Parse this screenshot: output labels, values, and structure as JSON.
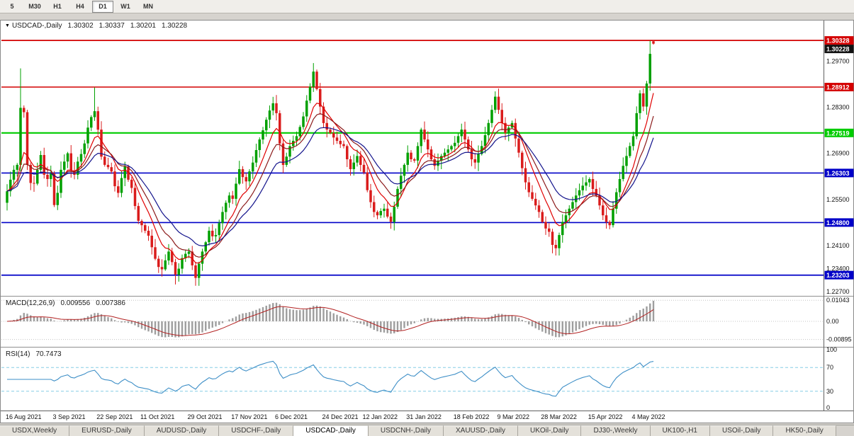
{
  "toolbar": {
    "periods": [
      {
        "label": "5",
        "active": false
      },
      {
        "label": "M30",
        "active": false
      },
      {
        "label": "H1",
        "active": false
      },
      {
        "label": "H4",
        "active": false
      },
      {
        "label": "D1",
        "active": true
      },
      {
        "label": "W1",
        "active": false
      },
      {
        "label": "MN",
        "active": false
      }
    ]
  },
  "price_pane": {
    "title": "USDCAD-,Daily",
    "open": "1.30302",
    "high": "1.30337",
    "low": "1.30201",
    "close": "1.30228"
  },
  "macd_pane": {
    "label": "MACD(12,26,9)",
    "main_value": "0.009556",
    "signal_value": "0.007386"
  },
  "rsi_pane": {
    "label": "RSI(14)",
    "value": "70.7473"
  },
  "tabs": [
    {
      "label": "USDX,Weekly",
      "active": false
    },
    {
      "label": "EURUSD-,Daily",
      "active": false
    },
    {
      "label": "AUDUSD-,Daily",
      "active": false
    },
    {
      "label": "USDCHF-,Daily",
      "active": false
    },
    {
      "label": "USDCAD-,Daily",
      "active": true
    },
    {
      "label": "USDCNH-,Daily",
      "active": false
    },
    {
      "label": "XAUUSD-,Daily",
      "active": false
    },
    {
      "label": "UKOil-,Daily",
      "active": false
    },
    {
      "label": "DJ30-,Weekly",
      "active": false
    },
    {
      "label": "UK100-,H1",
      "active": false
    },
    {
      "label": "USOil-,Daily",
      "active": false
    },
    {
      "label": "HK50-,Daily",
      "active": false
    }
  ],
  "colors": {
    "bull": "#00A000",
    "bear": "#DA1C1C",
    "level_red": "#D40000",
    "level_green": "#00CC00",
    "level_blue": "#0000C8",
    "macd_hist": "#9E9E9E",
    "macd_signal": "#B22222",
    "rsi_line": "#3E8FC7",
    "bid_badge": "#111111"
  },
  "chart_data": {
    "type": "candlestick",
    "symbol": "USDCAD-",
    "timeframe": "Daily",
    "quote": {
      "open": 1.30302,
      "high": 1.30337,
      "low": 1.30201,
      "close": 1.30228
    },
    "closes": [
      1.2575,
      1.261,
      1.264,
      1.2655,
      1.2828,
      1.2815,
      1.2655,
      1.26,
      1.2598,
      1.264,
      1.2685,
      1.2625,
      1.2612,
      1.2628,
      1.2533,
      1.257,
      1.264,
      1.2665,
      1.269,
      1.2638,
      1.2625,
      1.2665,
      1.2688,
      1.272,
      1.2768,
      1.28,
      1.2818,
      1.2762,
      1.268,
      1.2655,
      1.2648,
      1.2635,
      1.259,
      1.257,
      1.2615,
      1.265,
      1.261,
      1.2585,
      1.253,
      1.2485,
      1.2472,
      1.2455,
      1.244,
      1.2405,
      1.237,
      1.2345,
      1.2338,
      1.2365,
      1.2392,
      1.236,
      1.2322,
      1.234,
      1.2372,
      1.2385,
      1.2392,
      1.235,
      1.2312,
      1.2355,
      1.2392,
      1.242,
      1.2455,
      1.2438,
      1.2442,
      1.2478,
      1.2512,
      1.254,
      1.2562,
      1.2552,
      1.2598,
      1.2642,
      1.2618,
      1.2605,
      1.2635,
      1.2662,
      1.27,
      1.2732,
      1.276,
      1.2792,
      1.282,
      1.2842,
      1.2812,
      1.272,
      1.2655,
      1.268,
      1.2712,
      1.2728,
      1.2742,
      1.277,
      1.2802,
      1.285,
      1.2892,
      1.2938,
      1.2885,
      1.2832,
      1.2782,
      1.2762,
      1.2752,
      1.2738,
      1.2728,
      1.2718,
      1.2712,
      1.2672,
      1.2642,
      1.2662,
      1.2682,
      1.2655,
      1.2632,
      1.2578,
      1.2542,
      1.2512,
      1.2502,
      1.2515,
      1.2522,
      1.2498,
      1.2482,
      1.2528,
      1.2582,
      1.2622,
      1.2655,
      1.2692,
      1.2672,
      1.2668,
      1.2712,
      1.2762,
      1.2732,
      1.2702,
      1.2672,
      1.2652,
      1.2668,
      1.2682,
      1.2692,
      1.2702,
      1.2712,
      1.2722,
      1.2742,
      1.2762,
      1.2732,
      1.2702,
      1.2672,
      1.2662,
      1.2688,
      1.2712,
      1.2745,
      1.2782,
      1.2822,
      1.2862,
      1.2822,
      1.2782,
      1.2752,
      1.2768,
      1.2782,
      1.2735,
      1.2692,
      1.2645,
      1.2602,
      1.2572,
      1.2552,
      1.2532,
      1.2512,
      1.2482,
      1.2462,
      1.2452,
      1.2412,
      1.2402,
      1.2442,
      1.2482,
      1.2502,
      1.2522,
      1.2542,
      1.2562,
      1.2578,
      1.2592,
      1.2602,
      1.2612,
      1.2582,
      1.2562,
      1.2532,
      1.2502,
      1.2482,
      1.2472,
      1.2522,
      1.2572,
      1.2612,
      1.2652,
      1.2682,
      1.2712,
      1.2742,
      1.2812,
      1.2872,
      1.2832,
      1.2902,
      1.2992,
      1.30228
    ],
    "wick_overrides": {
      "4": 1.2948,
      "26": 1.289,
      "91": 1.2964,
      "145": 1.2878,
      "191": 1.3032
    },
    "low_overrides": {
      "50": 1.2292,
      "56": 1.2288,
      "163": 1.2388
    },
    "date_labels": [
      {
        "i": 0,
        "t": "16 Aug 2021"
      },
      {
        "i": 14,
        "t": "3 Sep 2021"
      },
      {
        "i": 27,
        "t": "22 Sep 2021"
      },
      {
        "i": 40,
        "t": "11 Oct 2021"
      },
      {
        "i": 54,
        "t": "29 Oct 2021"
      },
      {
        "i": 67,
        "t": "17 Nov 2021"
      },
      {
        "i": 80,
        "t": "6 Dec 2021"
      },
      {
        "i": 94,
        "t": "24 Dec 2021"
      },
      {
        "i": 106,
        "t": "12 Jan 2022"
      },
      {
        "i": 119,
        "t": "31 Jan 2022"
      },
      {
        "i": 133,
        "t": "18 Feb 2022"
      },
      {
        "i": 146,
        "t": "9 Mar 2022"
      },
      {
        "i": 159,
        "t": "28 Mar 2022"
      },
      {
        "i": 173,
        "t": "15 Apr 2022"
      },
      {
        "i": 186,
        "t": "4 May 2022"
      }
    ],
    "y_axis": {
      "max": 1.3091,
      "min": 1.2266,
      "ticks": [
        1.297,
        1.29,
        1.283,
        1.276,
        1.269,
        1.262,
        1.255,
        1.248,
        1.241,
        1.234,
        1.227
      ]
    },
    "levels": [
      {
        "price": 1.30328,
        "label": "1.30328",
        "color": "#D40000",
        "width": 1.8
      },
      {
        "price": 1.28912,
        "label": "1.28912",
        "color": "#D40000",
        "width": 1.5
      },
      {
        "price": 1.27519,
        "label": "1.27519",
        "color": "#00CC00",
        "width": 2.2
      },
      {
        "price": 1.26303,
        "label": "1.26303",
        "color": "#0000C8",
        "width": 1.6
      },
      {
        "price": 1.248,
        "label": "1.24800",
        "color": "#0000C8",
        "width": 1.6
      },
      {
        "price": 1.23203,
        "label": "1.23203",
        "color": "#0000C8",
        "width": 1.8
      }
    ],
    "bid_marker": {
      "price": 1.30228,
      "label": "1.30228"
    },
    "moving_averages": [
      {
        "period": 8,
        "color": "#E00000"
      },
      {
        "period": 13,
        "color": "#8B1A1A"
      },
      {
        "period": 21,
        "color": "#14148C"
      }
    ],
    "macd": {
      "fast": 12,
      "slow": 26,
      "signal": 9,
      "main_value": 0.009556,
      "signal_value": 0.007386,
      "axis_values": [
        0.01043,
        0,
        -0.00895
      ],
      "axis_labels": [
        "0.01043",
        "0.00",
        "-0.00895"
      ]
    },
    "rsi": {
      "period": 14,
      "value": 70.7473,
      "levels": [
        70,
        30
      ],
      "axis_values": [
        100,
        70,
        30,
        0
      ],
      "axis_labels": [
        "100",
        "70",
        "30",
        "0"
      ]
    }
  }
}
